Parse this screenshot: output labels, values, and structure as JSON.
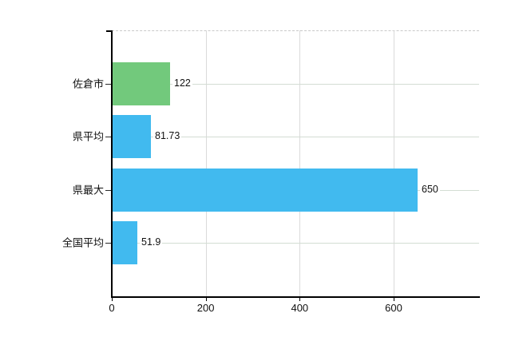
{
  "chart_data": {
    "type": "bar",
    "orientation": "horizontal",
    "title": "",
    "xlabel": "",
    "ylabel": "",
    "categories": [
      "佐倉市",
      "県平均",
      "県最大",
      "全国平均"
    ],
    "values": [
      122,
      81.73,
      650,
      51.9
    ],
    "value_labels": [
      "122",
      "81.73",
      "650",
      "51.9"
    ],
    "bar_colors": [
      "#72c97c",
      "#41baef",
      "#41baef",
      "#41baef"
    ],
    "highlighted_category": "佐倉市",
    "x_axis": {
      "min": 0,
      "max": 782,
      "ticks": [
        0,
        200,
        400,
        600
      ],
      "tick_labels": [
        "0",
        "200",
        "400",
        "600"
      ]
    },
    "grid": {
      "vertical": true,
      "horizontal": true
    },
    "legend": {
      "visible": false
    }
  },
  "colors": {
    "background": "#ffffff",
    "bar_highlight": "#72c97c",
    "bar_default": "#41baef",
    "axis": "#000000",
    "vertical_gridline": "#dadada",
    "horizontal_gridline": "#d3ddd3",
    "top_border": "#c9c9c9",
    "text": "#111111"
  }
}
